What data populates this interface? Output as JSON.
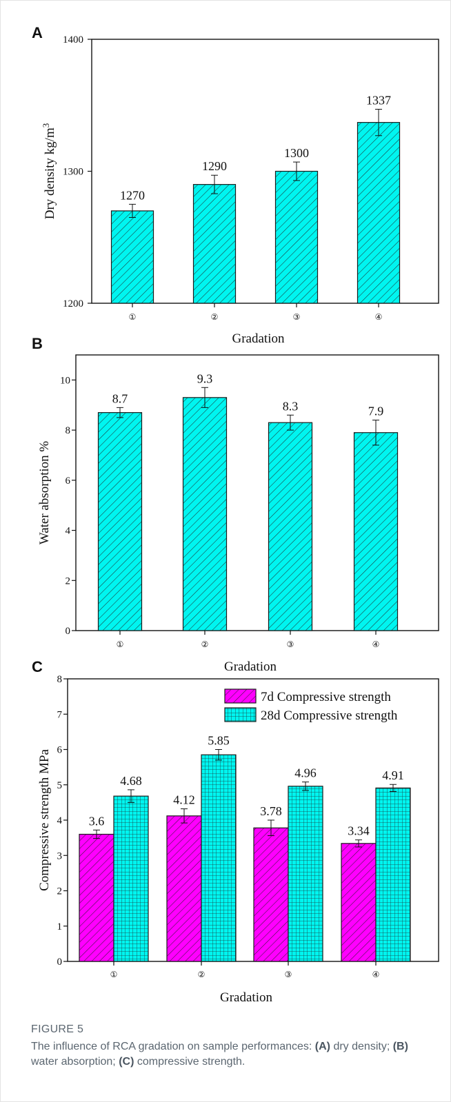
{
  "figure": {
    "label": "FIGURE 5",
    "caption_parts": [
      "The influence of RCA gradation on sample performances: ",
      "(A)",
      " dry density; ",
      "(B)",
      " water absorption; ",
      "(C)",
      " compressive strength."
    ]
  },
  "colors": {
    "cyan": "#00f5f0",
    "magenta": "#ff00ff"
  },
  "chart_data": [
    {
      "panel": "A",
      "type": "bar",
      "categories": [
        "①",
        "②",
        "③",
        "④"
      ],
      "values": [
        1270,
        1290,
        1300,
        1337
      ],
      "errors": [
        5,
        7,
        7,
        10
      ],
      "value_labels": [
        "1270",
        "1290",
        "1300",
        "1337"
      ],
      "xlabel": "Gradation",
      "ylabel": "Dry density kg/m",
      "ylabel_sup": "3",
      "ylim": [
        1200,
        1400
      ],
      "yticks": [
        1200,
        1300,
        1400
      ],
      "ytick_labels": [
        "1200",
        "1300",
        "1400"
      ],
      "pattern": "diagonal",
      "color": "#00f5f0"
    },
    {
      "panel": "B",
      "type": "bar",
      "categories": [
        "①",
        "②",
        "③",
        "④"
      ],
      "values": [
        8.7,
        9.3,
        8.3,
        7.9
      ],
      "errors": [
        0.2,
        0.4,
        0.3,
        0.5
      ],
      "value_labels": [
        "8.7",
        "9.3",
        "8.3",
        "7.9"
      ],
      "xlabel": "Gradation",
      "ylabel": "Water absorption %",
      "ylim": [
        0,
        11
      ],
      "yticks": [
        0,
        2,
        4,
        6,
        8,
        10
      ],
      "ytick_labels": [
        "0",
        "2",
        "4",
        "6",
        "8",
        "10"
      ],
      "pattern": "diagonal",
      "color": "#00f5f0"
    },
    {
      "panel": "C",
      "type": "bar",
      "categories": [
        "①",
        "②",
        "③",
        "④"
      ],
      "series": [
        {
          "name": "7d Compressive strength",
          "values": [
            3.6,
            4.12,
            3.78,
            3.34
          ],
          "errors": [
            0.12,
            0.2,
            0.22,
            0.1
          ],
          "value_labels": [
            "3.6",
            "4.12",
            "3.78",
            "3.34"
          ],
          "pattern": "diagonal",
          "color": "#ff00ff"
        },
        {
          "name": "28d Compressive strength",
          "values": [
            4.68,
            5.85,
            4.96,
            4.91
          ],
          "errors": [
            0.18,
            0.15,
            0.12,
            0.1
          ],
          "value_labels": [
            "4.68",
            "5.85",
            "4.96",
            "4.91"
          ],
          "pattern": "grid",
          "color": "#00f5f0"
        }
      ],
      "xlabel": "Gradation",
      "ylabel": "Compressive strength MPa",
      "ylim": [
        0,
        8
      ],
      "yticks": [
        0,
        1,
        2,
        3,
        4,
        5,
        6,
        7,
        8
      ],
      "ytick_labels": [
        "0",
        "1",
        "2",
        "3",
        "4",
        "5",
        "6",
        "7",
        "8"
      ],
      "legend": "top-right"
    }
  ]
}
